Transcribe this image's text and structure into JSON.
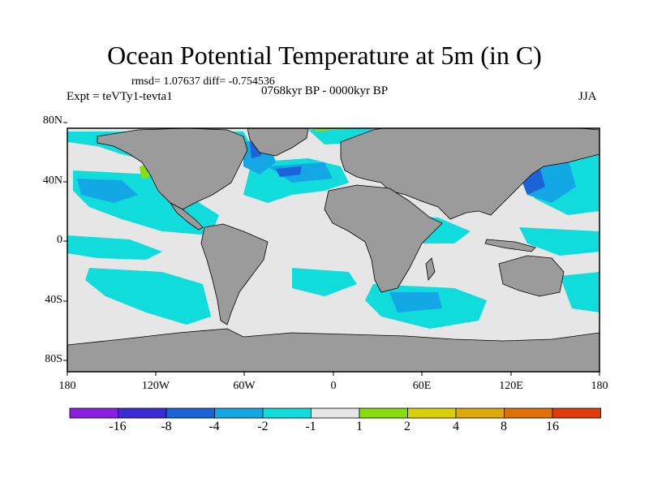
{
  "title": "Ocean Potential Temperature at 5m (in C)",
  "stats": "rmsd= 1.07637 diff= -0.754536",
  "experiment": "Expt = teVTy1-tevta1",
  "period": "0768kyr BP - 0000kyr BP",
  "season": "JJA",
  "lat_labels": [
    "80N",
    "40N",
    "0",
    "40S",
    "80S"
  ],
  "lon_labels": [
    "180",
    "120W",
    "60W",
    "0",
    "60E",
    "120E",
    "180"
  ],
  "colorbar": {
    "labels": [
      "-16",
      "-8",
      "-4",
      "-2",
      "-1",
      "1",
      "2",
      "4",
      "8",
      "16"
    ],
    "colors": [
      "#8a1de0",
      "#3a2bd6",
      "#1a63d8",
      "#14a7e6",
      "#11dcdc",
      "#e6e6e6",
      "#88dd10",
      "#d8d10a",
      "#e0a90b",
      "#e07008",
      "#e03a08"
    ]
  },
  "colors": {
    "land": "#9b9b9b",
    "ocean_neutral": "#e6e6e6",
    "cool_1": "#11dcdc",
    "cool_2": "#14a7e6",
    "cool_3": "#1a63d8",
    "warm_1": "#88dd10"
  }
}
